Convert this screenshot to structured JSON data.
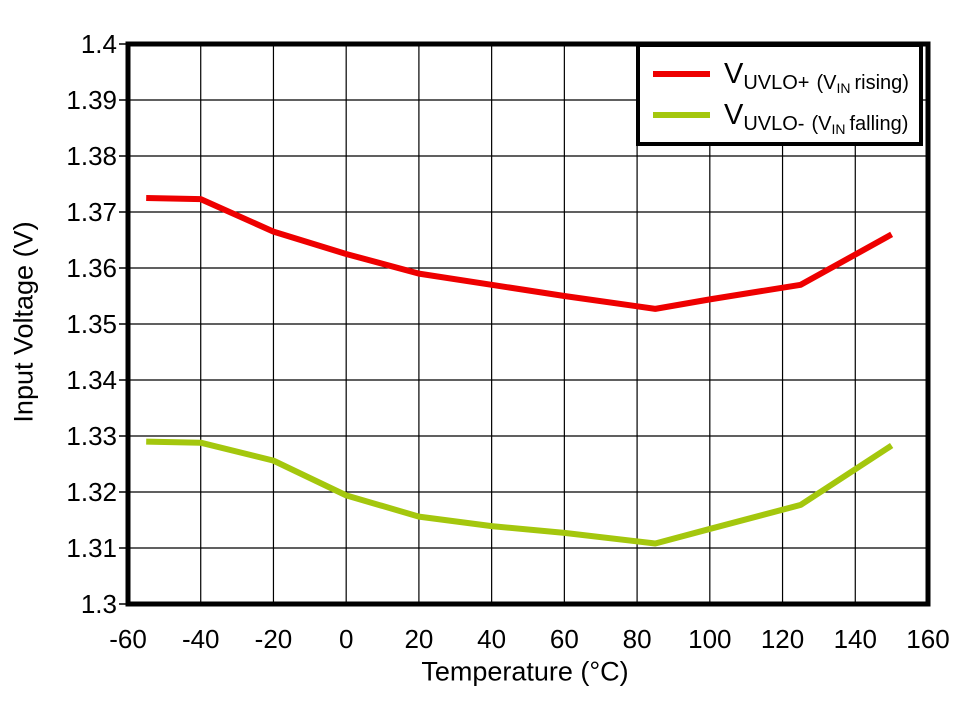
{
  "chart_data": {
    "type": "line",
    "title": "",
    "xlabel": "Temperature (°C)",
    "ylabel": "Input Voltage (V)",
    "xlim": [
      -60,
      160
    ],
    "ylim": [
      1.3,
      1.4
    ],
    "xticks": [
      -60,
      -40,
      -20,
      0,
      20,
      40,
      60,
      80,
      100,
      120,
      140,
      160
    ],
    "xtick_labels": [
      "-60",
      "-40",
      "-20",
      "0",
      "20",
      "40",
      "60",
      "80",
      "100",
      "120",
      "140",
      "160"
    ],
    "yticks": [
      1.4,
      1.39,
      1.38,
      1.37,
      1.36,
      1.35,
      1.34,
      1.33,
      1.32,
      1.31,
      1.3
    ],
    "ytick_labels": [
      "1.4",
      "1.39",
      "1.38",
      "1.37",
      "1.36",
      "1.35",
      "1.34",
      "1.33",
      "1.32",
      "1.31",
      "1.3"
    ],
    "grid": "on",
    "legend_position": "top-right",
    "x": [
      -55,
      -40,
      -20,
      0,
      20,
      40,
      60,
      85,
      100,
      125,
      150
    ],
    "series": [
      {
        "name": "VUVLO+ (VIN rising)",
        "color": "#ee0000",
        "values": [
          1.3725,
          1.3723,
          1.3665,
          1.3625,
          1.359,
          1.357,
          1.355,
          1.3527,
          1.3544,
          1.357,
          1.366
        ]
      },
      {
        "name": "VUVLO- (VIN falling)",
        "color": "#a4c70d",
        "values": [
          1.329,
          1.3288,
          1.3256,
          1.3194,
          1.3156,
          1.3139,
          1.3127,
          1.3108,
          1.3134,
          1.3177,
          1.3283
        ]
      }
    ]
  },
  "legend": {
    "items": [
      {
        "symbol": "V",
        "sub": "UVLO+",
        "paren": "(V",
        "paren_sub": "IN",
        "paren_rest": "rising)"
      },
      {
        "symbol": "V",
        "sub": "UVLO-",
        "paren": "(V",
        "paren_sub": "IN",
        "paren_rest": "falling)"
      }
    ]
  }
}
